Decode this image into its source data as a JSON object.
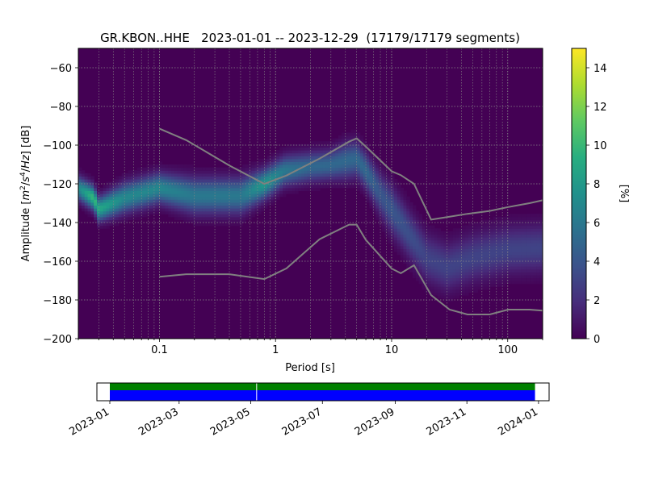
{
  "chart_data": [
    {
      "type": "heatmap",
      "title": "GR.KBON..HHE   2023-01-01 -- 2023-12-29  (17179/17179 segments)",
      "xlabel": "Period [s]",
      "ylabel_parts": [
        "Amplitude [",
        "m",
        "2",
        "/",
        "s",
        "4",
        "/",
        "Hz",
        "] [dB]"
      ],
      "x_scale": "log",
      "xlim": [
        0.02,
        200
      ],
      "ylim": [
        -200,
        -50
      ],
      "grid": true,
      "xticks": [
        {
          "value": 0.1,
          "label": "0.1"
        },
        {
          "value": 1,
          "label": "1"
        },
        {
          "value": 10,
          "label": "10"
        },
        {
          "value": 100,
          "label": "100"
        }
      ],
      "yticks": [
        {
          "value": -60,
          "label": "−60"
        },
        {
          "value": -80,
          "label": "−80"
        },
        {
          "value": -100,
          "label": "−100"
        },
        {
          "value": -120,
          "label": "−120"
        },
        {
          "value": -140,
          "label": "−140"
        },
        {
          "value": -160,
          "label": "−160"
        },
        {
          "value": -180,
          "label": "−180"
        },
        {
          "value": -200,
          "label": "−200"
        }
      ],
      "colorbar": {
        "label": "[%]",
        "range": [
          0,
          15
        ],
        "ticks": [
          {
            "value": 0,
            "label": "0"
          },
          {
            "value": 2,
            "label": "2"
          },
          {
            "value": 4,
            "label": "4"
          },
          {
            "value": 6,
            "label": "6"
          },
          {
            "value": 8,
            "label": "8"
          },
          {
            "value": 10,
            "label": "10"
          },
          {
            "value": 12,
            "label": "12"
          },
          {
            "value": 14,
            "label": "14"
          }
        ],
        "colormap": "viridis"
      },
      "density_ridge": {
        "x": [
          0.02,
          0.027,
          0.03,
          0.05,
          0.1,
          0.2,
          0.5,
          0.8,
          1.2,
          2,
          3,
          4,
          5,
          6,
          8,
          10,
          15,
          20,
          30,
          50,
          100,
          200
        ],
        "mode_db": [
          -122,
          -127,
          -133,
          -127,
          -122,
          -126,
          -126,
          -120,
          -113,
          -111,
          -110,
          -108,
          -107,
          -113,
          -125,
          -133,
          -148,
          -158,
          -163,
          -158,
          -154,
          -153
        ],
        "spread_db": [
          4,
          4,
          4,
          5,
          5,
          6,
          6,
          5,
          5,
          5,
          5,
          6,
          6,
          6,
          7,
          8,
          8,
          8,
          8,
          8,
          8,
          8
        ],
        "peak_percent": [
          7,
          10,
          9,
          7,
          7,
          6,
          6,
          8,
          6,
          5,
          5,
          5,
          5,
          5,
          4,
          4,
          3.5,
          3,
          3,
          3,
          3,
          3
        ]
      },
      "noise_models": [
        {
          "x": [
            0.1,
            0.17,
            0.4,
            0.8,
            1.24,
            2.4,
            4.3,
            5,
            6,
            10,
            12,
            15.6,
            21.9,
            31.6,
            45,
            70,
            101,
            154,
            200
          ],
          "y": [
            -91.5,
            -97.4,
            -110.5,
            -120,
            -115.7,
            -106.9,
            -98.2,
            -96.5,
            -100.8,
            -113.5,
            -115.5,
            -120,
            -138.5,
            -137,
            -135.5,
            -134,
            -132,
            -130,
            -128.5
          ]
        },
        {
          "x": [
            0.1,
            0.17,
            0.4,
            0.8,
            1.24,
            2.4,
            4.3,
            5,
            6,
            10,
            12,
            15.6,
            21.9,
            31.6,
            45,
            70,
            101,
            154,
            200
          ],
          "y": [
            -168,
            -166.7,
            -166.7,
            -169.2,
            -163.7,
            -148.6,
            -141.1,
            -141.1,
            -149,
            -163.8,
            -166.2,
            -162.1,
            -177.5,
            -185,
            -187.5,
            -187.5,
            -185,
            -185,
            -185.5
          ]
        }
      ]
    },
    {
      "type": "timeline",
      "xlim": [
        "2022-12-21",
        "2024-01-10"
      ],
      "ticks": [
        {
          "value": "2023-01-01",
          "label": "2023-01"
        },
        {
          "value": "2023-03-01",
          "label": "2023-03"
        },
        {
          "value": "2023-05-01",
          "label": "2023-05"
        },
        {
          "value": "2023-07-01",
          "label": "2023-07"
        },
        {
          "value": "2023-09-01",
          "label": "2023-09"
        },
        {
          "value": "2023-11-01",
          "label": "2023-11"
        },
        {
          "value": "2024-01-01",
          "label": "2024-01"
        }
      ],
      "coverage": {
        "start": "2023-01-01",
        "end": "2023-12-29",
        "gap": "2023-05-06"
      },
      "colors": {
        "coverage": "#008000",
        "used": "#0000ff"
      }
    }
  ]
}
